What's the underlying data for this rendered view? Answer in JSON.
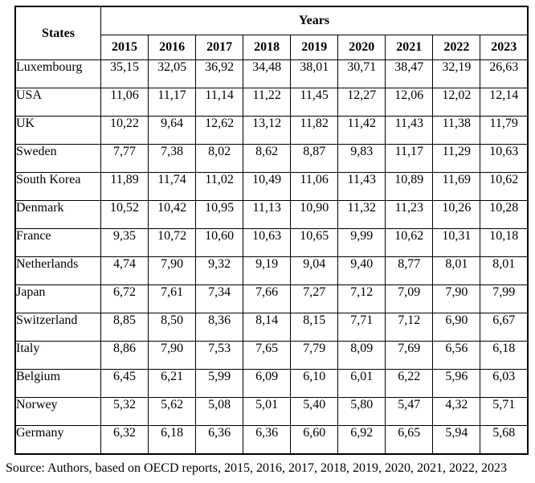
{
  "table": {
    "corner_header": "States",
    "years_header": "Years",
    "years": [
      "2015",
      "2016",
      "2017",
      "2018",
      "2019",
      "2020",
      "2021",
      "2022",
      "2023"
    ],
    "rows": [
      {
        "state": "Luxembourg",
        "values": [
          "35,15",
          "32,05",
          "36,92",
          "34,48",
          "38,01",
          "30,71",
          "38,47",
          "32,19",
          "26,63"
        ]
      },
      {
        "state": "USA",
        "values": [
          "11,06",
          "11,17",
          "11,14",
          "11,22",
          "11,45",
          "12,27",
          "12,06",
          "12,02",
          "12,14"
        ]
      },
      {
        "state": "UK",
        "values": [
          "10,22",
          "9,64",
          "12,62",
          "13,12",
          "11,82",
          "11,42",
          "11,43",
          "11,38",
          "11,79"
        ]
      },
      {
        "state": "Sweden",
        "values": [
          "7,77",
          "7,38",
          "8,02",
          "8,62",
          "8,87",
          "9,83",
          "11,17",
          "11,29",
          "10,63"
        ]
      },
      {
        "state": "South Korea",
        "values": [
          "11,89",
          "11,74",
          "11,02",
          "10,49",
          "11,06",
          "11,43",
          "10,89",
          "11,69",
          "10,62"
        ]
      },
      {
        "state": "Denmark",
        "values": [
          "10,52",
          "10,42",
          "10,95",
          "11,13",
          "10,90",
          "11,32",
          "11,23",
          "10,26",
          "10,28"
        ]
      },
      {
        "state": "France",
        "values": [
          "9,35",
          "10,72",
          "10,60",
          "10,63",
          "10,65",
          "9,99",
          "10,62",
          "10,31",
          "10,18"
        ]
      },
      {
        "state": "Netherlands",
        "values": [
          "4,74",
          "7,90",
          "9,32",
          "9,19",
          "9,04",
          "9,40",
          "8,77",
          "8,01",
          "8,01"
        ]
      },
      {
        "state": "Japan",
        "values": [
          "6,72",
          "7,61",
          "7,34",
          "7,66",
          "7,27",
          "7,12",
          "7,09",
          "7,90",
          "7,99"
        ]
      },
      {
        "state": "Switzerland",
        "values": [
          "8,85",
          "8,50",
          "8,36",
          "8,14",
          "8,15",
          "7,71",
          "7,12",
          "6,90",
          "6,67"
        ]
      },
      {
        "state": "Italy",
        "values": [
          "8,86",
          "7,90",
          "7,53",
          "7,65",
          "7,79",
          "8,09",
          "7,69",
          "6,56",
          "6,18"
        ]
      },
      {
        "state": "Belgium",
        "values": [
          "6,45",
          "6,21",
          "5,99",
          "6,09",
          "6,10",
          "6,01",
          "6,22",
          "5,96",
          "6,03"
        ]
      },
      {
        "state": "Norwey",
        "values": [
          "5,32",
          "5,62",
          "5,08",
          "5,01",
          "5,40",
          "5,80",
          "5,47",
          "4,32",
          "5,71"
        ]
      },
      {
        "state": "Germany",
        "values": [
          "6,32",
          "6,18",
          "6,36",
          "6,36",
          "6,60",
          "6,92",
          "6,65",
          "5,94",
          "5,68"
        ]
      }
    ]
  },
  "source": "Source: Authors, based on OECD reports, 2015, 2016, 2017, 2018, 2019, 2020, 2021, 2022, 2023"
}
